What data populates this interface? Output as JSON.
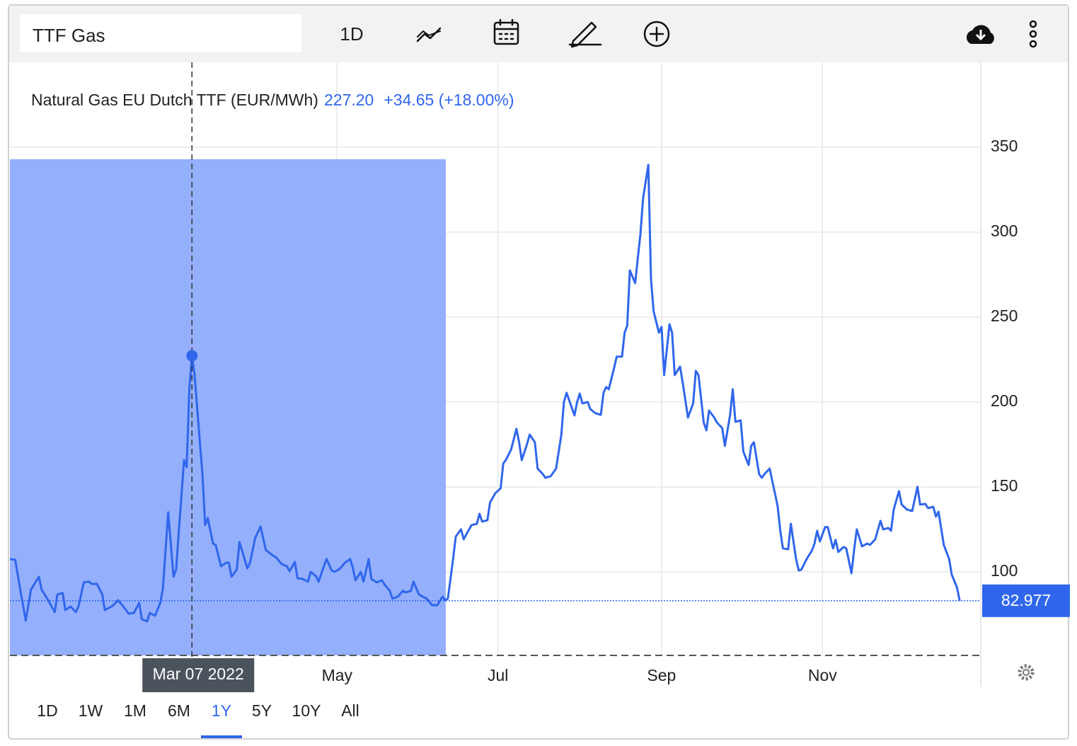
{
  "toolbar": {
    "symbol": "TTF Gas",
    "interval": "1D"
  },
  "ranges": [
    "1D",
    "1W",
    "1M",
    "6M",
    "1Y",
    "5Y",
    "10Y",
    "All"
  ],
  "active_range": "1Y",
  "chart_data": {
    "type": "line",
    "tooltip": {
      "value": "227.20",
      "change": "+34.65 (+18.00%)"
    },
    "crosshair": {
      "x": "2022-03-07",
      "label": "Mar 07 2022"
    },
    "x": [
      "2021-12-28",
      "2021-12-30",
      "2022-01-01",
      "2022-01-03",
      "2022-01-05",
      "2022-01-08",
      "2022-01-09",
      "2022-01-11",
      "2022-01-14",
      "2022-01-15",
      "2022-01-17",
      "2022-01-18",
      "2022-01-20",
      "2022-01-22",
      "2022-01-23",
      "2022-01-25",
      "2022-01-27",
      "2022-01-28",
      "2022-01-30",
      "2022-02-01",
      "2022-02-02",
      "2022-02-05",
      "2022-02-07",
      "2022-02-09",
      "2022-02-11",
      "2022-02-13",
      "2022-02-15",
      "2022-02-16",
      "2022-02-18",
      "2022-02-19",
      "2022-02-21",
      "2022-02-23",
      "2022-02-24",
      "2022-02-26",
      "2022-02-28",
      "2022-03-01",
      "2022-03-02",
      "2022-03-04",
      "2022-03-05",
      "2022-03-06",
      "2022-03-07",
      "2022-03-08",
      "2022-03-11",
      "2022-03-12",
      "2022-03-13",
      "2022-03-15",
      "2022-03-16",
      "2022-03-18",
      "2022-03-20",
      "2022-03-21",
      "2022-03-22",
      "2022-03-24",
      "2022-03-25",
      "2022-03-26",
      "2022-03-28",
      "2022-03-29",
      "2022-03-31",
      "2022-04-02",
      "2022-04-04",
      "2022-04-06",
      "2022-04-08",
      "2022-04-10",
      "2022-04-12",
      "2022-04-13",
      "2022-04-15",
      "2022-04-16",
      "2022-04-18",
      "2022-04-20",
      "2022-04-21",
      "2022-04-23",
      "2022-04-24",
      "2022-04-26",
      "2022-04-27",
      "2022-04-29",
      "2022-04-30",
      "2022-05-02",
      "2022-05-04",
      "2022-05-06",
      "2022-05-07",
      "2022-05-08",
      "2022-05-10",
      "2022-05-11",
      "2022-05-13",
      "2022-05-14",
      "2022-05-16",
      "2022-05-18",
      "2022-05-19",
      "2022-05-21",
      "2022-05-22",
      "2022-05-24",
      "2022-05-26",
      "2022-05-27",
      "2022-05-29",
      "2022-05-30",
      "2022-06-01",
      "2022-06-03",
      "2022-06-04",
      "2022-06-06",
      "2022-06-08",
      "2022-06-10",
      "2022-06-11",
      "2022-06-12",
      "2022-06-14",
      "2022-06-15",
      "2022-06-17",
      "2022-06-18",
      "2022-06-19",
      "2022-06-21",
      "2022-06-23",
      "2022-06-24",
      "2022-06-25",
      "2022-06-27",
      "2022-06-28",
      "2022-06-30",
      "2022-07-02",
      "2022-07-03",
      "2022-07-04",
      "2022-07-06",
      "2022-07-08",
      "2022-07-09",
      "2022-07-10",
      "2022-07-12",
      "2022-07-13",
      "2022-07-15",
      "2022-07-16",
      "2022-07-18",
      "2022-07-19",
      "2022-07-21",
      "2022-07-23",
      "2022-07-25",
      "2022-07-26",
      "2022-07-27",
      "2022-07-30",
      "2022-07-31",
      "2022-08-01",
      "2022-08-02",
      "2022-08-04",
      "2022-08-05",
      "2022-08-07",
      "2022-08-09",
      "2022-08-10",
      "2022-08-11",
      "2022-08-12",
      "2022-08-14",
      "2022-08-15",
      "2022-08-17",
      "2022-08-18",
      "2022-08-19",
      "2022-08-20",
      "2022-08-22",
      "2022-08-24",
      "2022-08-25",
      "2022-08-27",
      "2022-08-28",
      "2022-08-29",
      "2022-08-31",
      "2022-09-01",
      "2022-09-02",
      "2022-09-04",
      "2022-09-05",
      "2022-09-06",
      "2022-09-08",
      "2022-09-09",
      "2022-09-11",
      "2022-09-13",
      "2022-09-14",
      "2022-09-15",
      "2022-09-17",
      "2022-09-18",
      "2022-09-19",
      "2022-09-21",
      "2022-09-22",
      "2022-09-24",
      "2022-09-25",
      "2022-09-27",
      "2022-09-28",
      "2022-09-29",
      "2022-10-01",
      "2022-10-02",
      "2022-10-04",
      "2022-10-05",
      "2022-10-06",
      "2022-10-08",
      "2022-10-09",
      "2022-10-10",
      "2022-10-12",
      "2022-10-13",
      "2022-10-15",
      "2022-10-16",
      "2022-10-17",
      "2022-10-19",
      "2022-10-20",
      "2022-10-22",
      "2022-10-23",
      "2022-10-24",
      "2022-10-26",
      "2022-10-28",
      "2022-10-29",
      "2022-10-30",
      "2022-10-31",
      "2022-11-02",
      "2022-11-03",
      "2022-11-05",
      "2022-11-06",
      "2022-11-07",
      "2022-11-09",
      "2022-11-10",
      "2022-11-12",
      "2022-11-13",
      "2022-11-14",
      "2022-11-16",
      "2022-11-18",
      "2022-11-19",
      "2022-11-21",
      "2022-11-23",
      "2022-11-24",
      "2022-11-26",
      "2022-11-27",
      "2022-11-28",
      "2022-11-30",
      "2022-12-01",
      "2022-12-03",
      "2022-12-05",
      "2022-12-07",
      "2022-12-08",
      "2022-12-10",
      "2022-12-11",
      "2022-12-13",
      "2022-12-14",
      "2022-12-15",
      "2022-12-17",
      "2022-12-19",
      "2022-12-20",
      "2022-12-22",
      "2022-12-23"
    ],
    "series": [
      {
        "name": "Natural Gas EU Dutch TTF (EUR/MWh)",
        "color": "#2f66ec",
        "values": [
          107.5,
          107.1,
          88.8,
          71.3,
          89.6,
          97.1,
          89.6,
          84.6,
          76.3,
          86.7,
          87.5,
          77.5,
          79.6,
          76.3,
          79.6,
          93.8,
          94.2,
          92.9,
          92.9,
          86.7,
          77.5,
          80.0,
          83.3,
          79.6,
          75.4,
          75.8,
          81.7,
          72.1,
          70.8,
          75.8,
          74.2,
          81.7,
          90.0,
          135.0,
          97.1,
          101.3,
          123.3,
          165.8,
          161.7,
          207.5,
          227.2,
          215.8,
          156.7,
          127.5,
          131.7,
          116.7,
          115.8,
          103.3,
          105.4,
          105.4,
          97.1,
          101.3,
          117.5,
          112.5,
          102.1,
          105.4,
          120.0,
          126.7,
          112.9,
          110.4,
          108.3,
          104.6,
          103.3,
          100.4,
          105.8,
          96.3,
          95.8,
          94.2,
          100.0,
          97.5,
          94.2,
          103.3,
          107.5,
          100.8,
          100.0,
          101.7,
          105.4,
          107.5,
          102.1,
          95.0,
          100.0,
          94.2,
          107.5,
          95.8,
          93.8,
          95.0,
          92.5,
          88.8,
          84.2,
          85.4,
          88.8,
          87.9,
          88.8,
          94.2,
          86.7,
          85.0,
          84.2,
          80.4,
          80.4,
          85.4,
          83.3,
          84.2,
          107.5,
          120.8,
          125.0,
          119.2,
          122.1,
          127.5,
          128.3,
          134.2,
          129.6,
          130.4,
          140.8,
          146.3,
          149.2,
          163.8,
          165.8,
          172.1,
          184.2,
          176.3,
          165.8,
          175.0,
          180.8,
          176.3,
          160.8,
          157.5,
          155.4,
          156.3,
          160.8,
          180.4,
          200.0,
          205.4,
          192.1,
          200.0,
          205.0,
          199.2,
          200.0,
          195.8,
          193.3,
          192.5,
          205.4,
          208.8,
          207.5,
          220.0,
          226.7,
          226.7,
          240.8,
          245.0,
          277.5,
          270.0,
          299.2,
          320.0,
          339.6,
          272.1,
          253.3,
          240.8,
          244.2,
          215.8,
          245.8,
          240.8,
          215.8,
          220.8,
          211.7,
          190.8,
          199.2,
          218.3,
          215.8,
          187.9,
          183.3,
          195.0,
          190.8,
          187.9,
          184.6,
          174.2,
          192.5,
          207.5,
          188.3,
          189.2,
          170.8,
          162.9,
          174.2,
          176.3,
          157.5,
          155.4,
          157.5,
          160.8,
          153.3,
          138.8,
          124.2,
          113.8,
          113.3,
          128.3,
          107.5,
          100.8,
          101.3,
          107.5,
          112.5,
          116.7,
          124.2,
          117.9,
          126.3,
          126.3,
          113.8,
          118.8,
          111.7,
          114.6,
          113.8,
          99.2,
          112.9,
          125.0,
          115.0,
          116.7,
          115.8,
          119.2,
          130.0,
          125.0,
          125.8,
          124.2,
          136.7,
          147.5,
          139.6,
          136.7,
          135.8,
          150.0,
          139.6,
          140.0,
          137.5,
          138.3,
          132.5,
          135.4,
          115.8,
          107.5,
          98.3,
          90.8,
          82.977
        ]
      }
    ],
    "xlim": [
      "2021-12-28",
      "2022-12-31"
    ],
    "xticks": [
      {
        "value": "2022-05-01",
        "label": "May"
      },
      {
        "value": "2022-07-01",
        "label": "Jul"
      },
      {
        "value": "2022-09-01",
        "label": "Sep"
      },
      {
        "value": "2022-11-01",
        "label": "Nov"
      }
    ],
    "ylim": [
      50.8,
      400
    ],
    "yticks": [
      100,
      150,
      200,
      250,
      300,
      350
    ],
    "grid": true
  }
}
